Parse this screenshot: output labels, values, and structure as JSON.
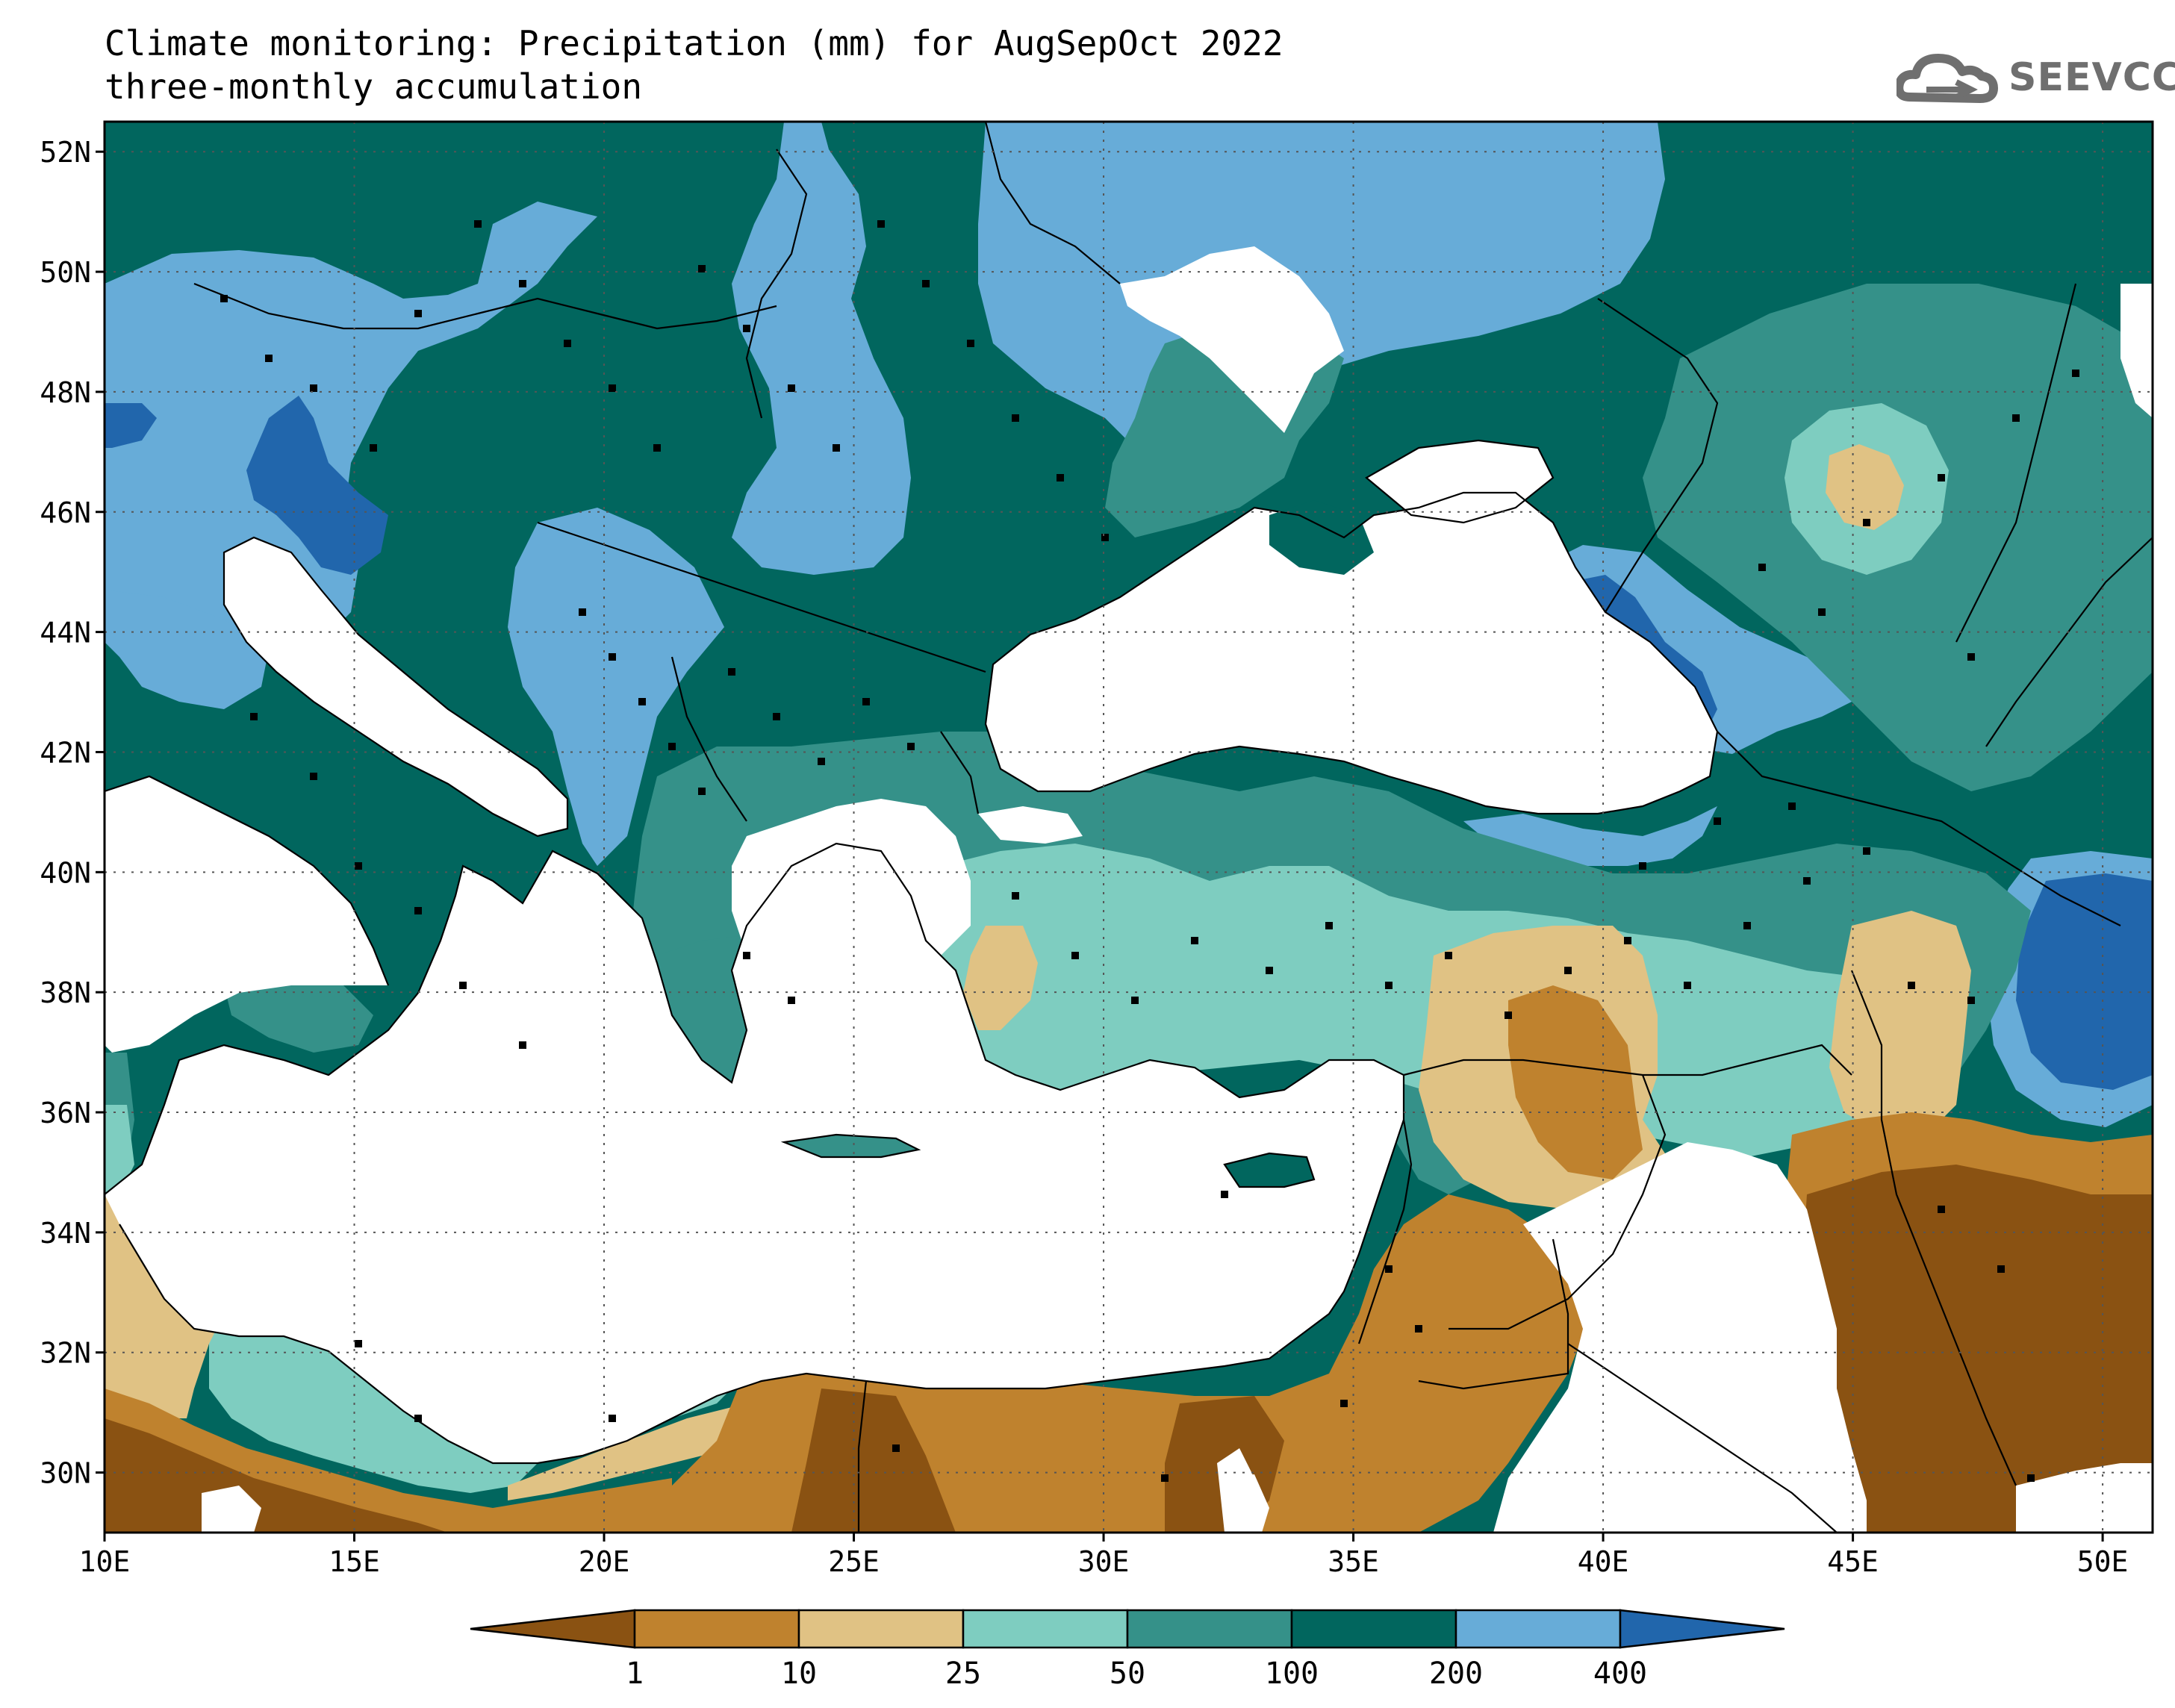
{
  "title": {
    "line1": "Climate monitoring: Precipitation (mm) for AugSepOct 2022",
    "line2": "three-monthly accumulation"
  },
  "logo": {
    "text": "SEEVCCC"
  },
  "map": {
    "lat_range": [
      29,
      52.5
    ],
    "lon_range": [
      10,
      51
    ],
    "lat_ticks": [
      {
        "value": 52,
        "label": "52N"
      },
      {
        "value": 50,
        "label": "50N"
      },
      {
        "value": 48,
        "label": "48N"
      },
      {
        "value": 46,
        "label": "46N"
      },
      {
        "value": 44,
        "label": "44N"
      },
      {
        "value": 42,
        "label": "42N"
      },
      {
        "value": 40,
        "label": "40N"
      },
      {
        "value": 38,
        "label": "38N"
      },
      {
        "value": 36,
        "label": "36N"
      },
      {
        "value": 34,
        "label": "34N"
      },
      {
        "value": 32,
        "label": "32N"
      },
      {
        "value": 30,
        "label": "30N"
      }
    ],
    "lon_ticks": [
      {
        "value": 10,
        "label": "10E"
      },
      {
        "value": 15,
        "label": "15E"
      },
      {
        "value": 20,
        "label": "20E"
      },
      {
        "value": 25,
        "label": "25E"
      },
      {
        "value": 30,
        "label": "30E"
      },
      {
        "value": 35,
        "label": "35E"
      },
      {
        "value": 40,
        "label": "40E"
      },
      {
        "value": 45,
        "label": "45E"
      },
      {
        "value": 50,
        "label": "50E"
      }
    ],
    "gridlines": "dotted"
  },
  "legend": {
    "colors": [
      "#8a5212",
      "#bf822e",
      "#e0c284",
      "#7ecdc0",
      "#359189",
      "#01665e",
      "#67acd8",
      "#2166ac"
    ],
    "labels": [
      "1",
      "10",
      "25",
      "50",
      "100",
      "200",
      "400"
    ]
  }
}
